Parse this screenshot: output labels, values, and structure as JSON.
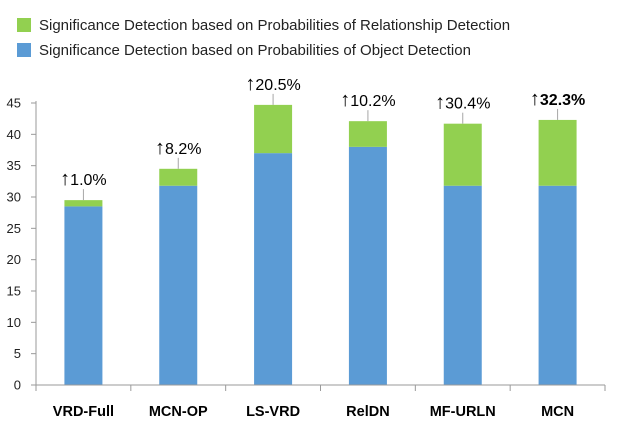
{
  "chart_data": {
    "type": "bar",
    "stacked": true,
    "categories": [
      "VRD-Full",
      "MCN-OP",
      "LS-VRD",
      "RelDN",
      "MF-URLN",
      "MCN"
    ],
    "series": [
      {
        "name": "Significance Detection based on Probabilities of Object Detection",
        "color": "#5B9BD5",
        "values": [
          28.5,
          31.8,
          37.0,
          38.0,
          31.8,
          31.8
        ]
      },
      {
        "name": "Significance Detection based on Probabilities of Relationship Detection",
        "color": "#92D050",
        "values": [
          1.0,
          2.7,
          7.7,
          4.1,
          9.9,
          10.5
        ]
      }
    ],
    "annotations": [
      "1.0%",
      "8.2%",
      "20.5%",
      "10.2%",
      "30.4%",
      "32.3%"
    ],
    "annotation_bold": [
      false,
      false,
      false,
      false,
      false,
      true
    ],
    "annotation_arrow": "↑",
    "yticks": [
      0,
      5,
      10,
      15,
      20,
      25,
      30,
      35,
      40,
      45
    ],
    "ylim": [
      0,
      45
    ],
    "legend_position": "top-left",
    "grid": false
  }
}
